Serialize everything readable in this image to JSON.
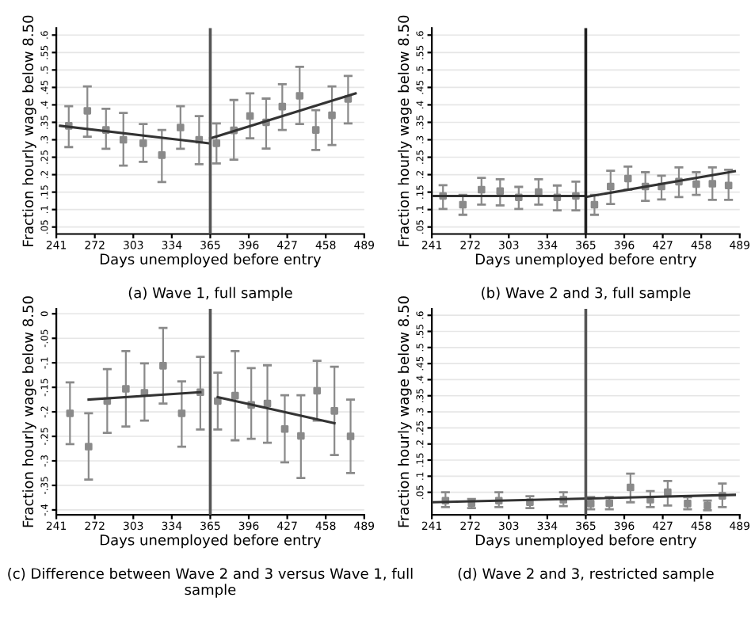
{
  "chart_data": [
    {
      "type": "scatter",
      "title": "(a) Wave 1, full sample",
      "xlabel": "Days unemployed before entry",
      "ylabel": "Fraction hourly wage below 8.50",
      "xlim": [
        241,
        489
      ],
      "xticks": [
        241,
        272,
        303,
        334,
        365,
        396,
        427,
        458,
        489
      ],
      "ylim": [
        0.03,
        0.62
      ],
      "yticks": [
        {
          "value": 0.05,
          "label": ".05"
        },
        {
          "value": 0.1,
          "label": ".1"
        },
        {
          "value": 0.15,
          "label": ".15"
        },
        {
          "value": 0.2,
          "label": ".2"
        },
        {
          "value": 0.25,
          "label": ".25"
        },
        {
          "value": 0.3,
          "label": ".3"
        },
        {
          "value": 0.35,
          "label": ".35"
        },
        {
          "value": 0.4,
          "label": ".4"
        },
        {
          "value": 0.45,
          "label": ".45"
        },
        {
          "value": 0.5,
          "label": ".5"
        },
        {
          "value": 0.55,
          "label": ".55"
        },
        {
          "value": 0.6,
          "label": ".6"
        }
      ],
      "grid": "y",
      "ref_lines": [
        {
          "axis": "x",
          "value": 365,
          "color": "#555555"
        }
      ],
      "series": [
        {
          "type": "scatter",
          "marker": "square",
          "color": "#8a8a8a",
          "x": [
            251,
            266,
            281,
            295,
            311,
            326,
            341,
            356,
            370,
            384,
            397,
            410,
            423,
            437,
            450,
            463,
            476
          ],
          "values": [
            0.34,
            0.383,
            0.328,
            0.3,
            0.29,
            0.256,
            0.335,
            0.3,
            0.29,
            0.327,
            0.368,
            0.35,
            0.395,
            0.426,
            0.328,
            0.37,
            0.417
          ],
          "errors": [
            [
              0.279,
              0.396
            ],
            [
              0.309,
              0.453
            ],
            [
              0.274,
              0.389
            ],
            [
              0.226,
              0.377
            ],
            [
              0.237,
              0.345
            ],
            [
              0.179,
              0.328
            ],
            [
              0.274,
              0.396
            ],
            [
              0.23,
              0.368
            ],
            [
              0.232,
              0.347
            ],
            [
              0.243,
              0.414
            ],
            [
              0.304,
              0.433
            ],
            [
              0.275,
              0.418
            ],
            [
              0.328,
              0.459
            ],
            [
              0.345,
              0.509
            ],
            [
              0.271,
              0.385
            ],
            [
              0.285,
              0.453
            ],
            [
              0.347,
              0.483
            ]
          ]
        },
        {
          "type": "line",
          "color": "#333333",
          "x": [
            244,
            364,
            364.5,
            365,
            482
          ],
          "values": [
            0.34,
            0.29,
            null,
            0.304,
            0.433
          ]
        }
      ]
    },
    {
      "type": "scatter",
      "title": "(b) Wave 2 and 3, full sample",
      "xlabel": "Days unemployed before entry",
      "ylabel": "Fraction hourly wage below 8.50",
      "xlim": [
        241,
        489
      ],
      "xticks": [
        241,
        272,
        303,
        334,
        365,
        396,
        427,
        458,
        489
      ],
      "ylim": [
        0.03,
        0.62
      ],
      "yticks": [
        {
          "value": 0.05,
          "label": ".05"
        },
        {
          "value": 0.1,
          "label": ".1"
        },
        {
          "value": 0.15,
          "label": ".15"
        },
        {
          "value": 0.2,
          "label": ".2"
        },
        {
          "value": 0.25,
          "label": ".25"
        },
        {
          "value": 0.3,
          "label": ".3"
        },
        {
          "value": 0.35,
          "label": ".35"
        },
        {
          "value": 0.4,
          "label": ".4"
        },
        {
          "value": 0.45,
          "label": ".45"
        },
        {
          "value": 0.5,
          "label": ".5"
        },
        {
          "value": 0.55,
          "label": ".55"
        },
        {
          "value": 0.6,
          "label": ".6"
        }
      ],
      "grid": "y",
      "ref_lines": [
        {
          "axis": "x",
          "value": 365,
          "color": "#222222"
        }
      ],
      "series": [
        {
          "type": "scatter",
          "marker": "square",
          "color": "#8a8a8a",
          "x": [
            250,
            266,
            281,
            296,
            311,
            327,
            342,
            357,
            372,
            385,
            399,
            413,
            426,
            440,
            454,
            467,
            480
          ],
          "values": [
            0.139,
            0.114,
            0.157,
            0.153,
            0.135,
            0.15,
            0.135,
            0.139,
            0.114,
            0.166,
            0.189,
            0.166,
            0.166,
            0.18,
            0.173,
            0.174,
            0.169
          ],
          "errors": [
            [
              0.102,
              0.17
            ],
            [
              0.085,
              0.142
            ],
            [
              0.114,
              0.191
            ],
            [
              0.112,
              0.187
            ],
            [
              0.102,
              0.165
            ],
            [
              0.114,
              0.187
            ],
            [
              0.098,
              0.169
            ],
            [
              0.098,
              0.18
            ],
            [
              0.085,
              0.142
            ],
            [
              0.116,
              0.211
            ],
            [
              0.157,
              0.223
            ],
            [
              0.125,
              0.207
            ],
            [
              0.129,
              0.197
            ],
            [
              0.136,
              0.221
            ],
            [
              0.142,
              0.207
            ],
            [
              0.128,
              0.221
            ],
            [
              0.128,
              0.214
            ]
          ]
        },
        {
          "type": "line",
          "color": "#333333",
          "x": [
            242,
            364,
            364.5,
            365,
            485
          ],
          "values": [
            0.139,
            0.139,
            null,
            0.136,
            0.21
          ]
        }
      ]
    },
    {
      "type": "scatter",
      "title": "(c) Difference between Wave 2 and 3 versus Wave 1, full sample",
      "xlabel": "Days unemployed before entry",
      "ylabel": "Fraction hourly wage below 8.50",
      "xlim": [
        241,
        489
      ],
      "xticks": [
        241,
        272,
        303,
        334,
        365,
        396,
        427,
        458,
        489
      ],
      "ylim": [
        -0.41,
        0.01
      ],
      "yticks": [
        {
          "value": -0.4,
          "label": "-.4"
        },
        {
          "value": -0.35,
          "label": "-.35"
        },
        {
          "value": -0.3,
          "label": "-.3"
        },
        {
          "value": -0.25,
          "label": "-.25"
        },
        {
          "value": -0.2,
          "label": "-.2"
        },
        {
          "value": -0.15,
          "label": "-.15"
        },
        {
          "value": -0.1,
          "label": "-.1"
        },
        {
          "value": -0.05,
          "label": "-.05"
        },
        0
      ],
      "grid": "y",
      "ref_lines": [
        {
          "axis": "x",
          "value": 365,
          "color": "#555555"
        }
      ],
      "series": [
        {
          "type": "scatter",
          "marker": "square",
          "color": "#8a8a8a",
          "x": [
            252,
            267,
            282,
            297,
            312,
            327,
            342,
            357,
            371,
            385,
            398,
            411,
            425,
            438,
            451,
            465,
            478
          ],
          "values": [
            -0.203,
            -0.271,
            -0.178,
            -0.153,
            -0.161,
            -0.106,
            -0.203,
            -0.16,
            -0.178,
            -0.167,
            -0.186,
            -0.183,
            -0.235,
            -0.249,
            -0.157,
            -0.198,
            -0.25
          ],
          "errors": [
            [
              -0.266,
              -0.14
            ],
            [
              -0.338,
              -0.203
            ],
            [
              -0.243,
              -0.113
            ],
            [
              -0.23,
              -0.076
            ],
            [
              -0.218,
              -0.101
            ],
            [
              -0.183,
              -0.029
            ],
            [
              -0.271,
              -0.138
            ],
            [
              -0.236,
              -0.088
            ],
            [
              -0.236,
              -0.12
            ],
            [
              -0.258,
              -0.076
            ],
            [
              -0.255,
              -0.111
            ],
            [
              -0.263,
              -0.105
            ],
            [
              -0.303,
              -0.166
            ],
            [
              -0.335,
              -0.166
            ],
            [
              -0.218,
              -0.096
            ],
            [
              -0.288,
              -0.108
            ],
            [
              -0.325,
              -0.175
            ]
          ]
        },
        {
          "type": "line",
          "color": "#333333",
          "x": [
            267,
            357,
            364,
            371,
            465
          ],
          "values": [
            -0.175,
            -0.16,
            null,
            -0.17,
            -0.223
          ]
        }
      ]
    },
    {
      "type": "scatter",
      "title": "(d) Wave 2 and 3, restricted sample",
      "xlabel": "Days unemployed before entry",
      "ylabel": "Fraction hourly wage below 8.50",
      "xlim": [
        241,
        489
      ],
      "xticks": [
        241,
        272,
        303,
        334,
        365,
        396,
        427,
        458,
        489
      ],
      "ylim": [
        -0.02,
        0.62
      ],
      "yticks": [
        {
          "value": 0.05,
          "label": ".05"
        },
        {
          "value": 0.1,
          "label": ".1"
        },
        {
          "value": 0.15,
          "label": ".15"
        },
        {
          "value": 0.2,
          "label": ".2"
        },
        {
          "value": 0.25,
          "label": ".25"
        },
        {
          "value": 0.3,
          "label": ".3"
        },
        {
          "value": 0.35,
          "label": ".35"
        },
        {
          "value": 0.4,
          "label": ".4"
        },
        {
          "value": 0.45,
          "label": ".45"
        },
        {
          "value": 0.5,
          "label": ".5"
        },
        {
          "value": 0.55,
          "label": ".55"
        },
        {
          "value": 0.6,
          "label": ".6"
        }
      ],
      "grid": "y",
      "ref_lines": [
        {
          "axis": "x",
          "value": 365,
          "color": "#555555"
        }
      ],
      "series": [
        {
          "type": "scatter",
          "marker": "square",
          "color": "#8a8a8a",
          "x": [
            252,
            273,
            295,
            320,
            347,
            369,
            384,
            401,
            417,
            431,
            447,
            463,
            475
          ],
          "values": [
            0.024,
            0.016,
            0.024,
            0.019,
            0.027,
            0.015,
            0.016,
            0.065,
            0.027,
            0.05,
            0.015,
            0.009,
            0.039
          ],
          "errors": [
            [
              0.004,
              0.05
            ],
            [
              0.001,
              0.029
            ],
            [
              0.004,
              0.05
            ],
            [
              0.001,
              0.038
            ],
            [
              0.007,
              0.05
            ],
            [
              -0.003,
              0.035
            ],
            [
              -0.003,
              0.035
            ],
            [
              0.019,
              0.108
            ],
            [
              0.004,
              0.054
            ],
            [
              0.009,
              0.085
            ],
            [
              -0.003,
              0.035
            ],
            [
              -0.006,
              0.024
            ],
            [
              0.004,
              0.077
            ]
          ]
        },
        {
          "type": "line",
          "color": "#333333",
          "x": [
            242,
            485
          ],
          "values": [
            0.019,
            0.042
          ]
        }
      ]
    }
  ]
}
